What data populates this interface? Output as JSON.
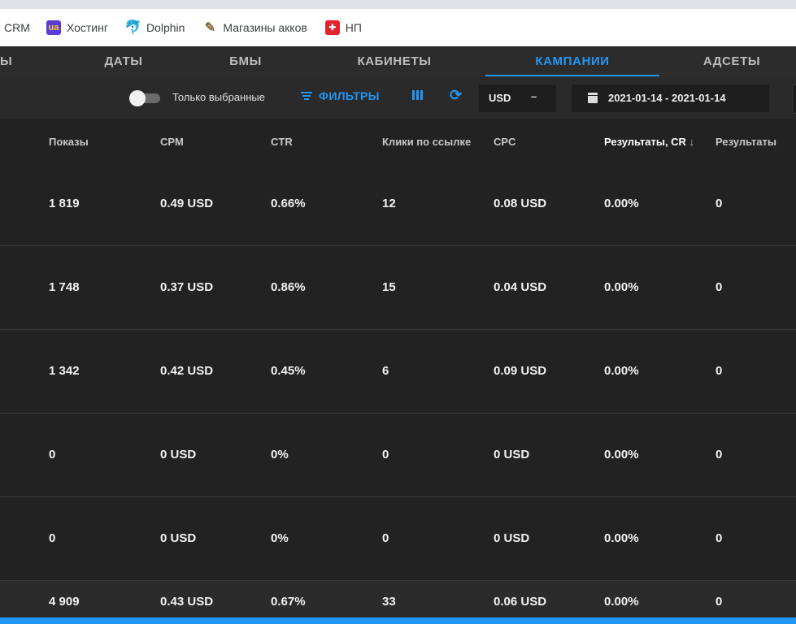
{
  "bookmarks": [
    {
      "label": "CRM",
      "icon": ""
    },
    {
      "label": "Хостинг",
      "icon": "ua-icon"
    },
    {
      "label": "Dolphin",
      "icon": "dolphin-icon"
    },
    {
      "label": "Магазины акков",
      "icon": "shop-icon"
    },
    {
      "label": "НП",
      "icon": "np-icon"
    }
  ],
  "tabs": [
    {
      "label": "Ы",
      "active": false
    },
    {
      "label": "ДАТЫ",
      "active": false
    },
    {
      "label": "БМЫ",
      "active": false
    },
    {
      "label": "КАБИНЕТЫ",
      "active": false
    },
    {
      "label": "КАМПАНИИ",
      "active": true
    },
    {
      "label": "АДСЕТЫ",
      "active": false
    }
  ],
  "toolbar": {
    "only_selected_label": "Только выбранные",
    "only_selected_on": false,
    "filters_label": "ФИЛЬТРЫ",
    "currency": "USD",
    "date_range": "2021-01-14 - 2021-01-14"
  },
  "table": {
    "columns": [
      "Показы",
      "CPM",
      "CTR",
      "Клики по ссылке",
      "CPC",
      "Результаты, CR",
      "Результаты"
    ],
    "sorted_column": "Результаты, CR",
    "sort_direction_icon": "arrow-down-icon",
    "rows": [
      [
        "1 819",
        "0.49 USD",
        "0.66%",
        "12",
        "0.08 USD",
        "0.00%",
        "0"
      ],
      [
        "1 748",
        "0.37 USD",
        "0.86%",
        "15",
        "0.04 USD",
        "0.00%",
        "0"
      ],
      [
        "1 342",
        "0.42 USD",
        "0.45%",
        "6",
        "0.09 USD",
        "0.00%",
        "0"
      ],
      [
        "0",
        "0 USD",
        "0%",
        "0",
        "0 USD",
        "0.00%",
        "0"
      ],
      [
        "0",
        "0 USD",
        "0%",
        "0",
        "0 USD",
        "0.00%",
        "0"
      ]
    ],
    "totals": [
      "4 909",
      "0.43 USD",
      "0.67%",
      "33",
      "0.06 USD",
      "0.00%",
      "0"
    ]
  },
  "colors": {
    "accent": "#2196f3",
    "background": "#222222",
    "text": "#f2f2f2"
  }
}
